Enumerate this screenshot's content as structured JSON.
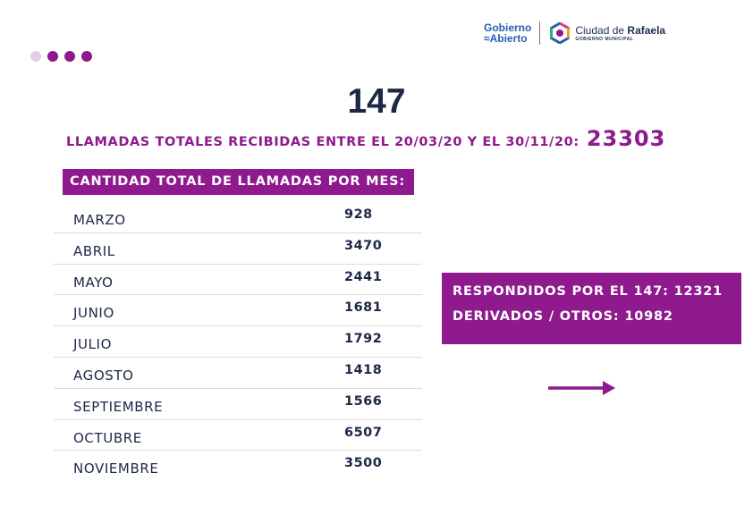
{
  "page_title": "147",
  "total": {
    "label": "LLAMADAS TOTALES RECIBIDAS ENTRE EL 20/03/20 Y EL 30/11/20:",
    "value": "23303"
  },
  "months_header": "CANTIDAD TOTAL DE LLAMADAS POR MES:",
  "months": [
    {
      "name": "MARZO",
      "value": "928"
    },
    {
      "name": "ABRIL",
      "value": "3470"
    },
    {
      "name": "MAYO",
      "value": "2441"
    },
    {
      "name": "JUNIO",
      "value": "1681"
    },
    {
      "name": "JULIO",
      "value": "1792"
    },
    {
      "name": "AGOSTO",
      "value": "1418"
    },
    {
      "name": "SEPTIEMBRE",
      "value": "1566"
    },
    {
      "name": "OCTUBRE",
      "value": "6507"
    },
    {
      "name": "NOVIEMBRE",
      "value": "3500"
    }
  ],
  "summary": {
    "responded_label": "RESPONDIDOS POR EL 147:",
    "responded_value": "12321",
    "derived_label": "DERIVADOS / OTROS:",
    "derived_value": "10982"
  },
  "logos": {
    "gobierno_line1": "Gobierno",
    "gobierno_line2": "Abierto",
    "city_prefix": "Ciudad de",
    "city_name": "Rafaela",
    "city_sub": "GOBIERNO MUNICIPAL"
  },
  "colors": {
    "accent": "#8e1a8e",
    "accent_light": "#e6cde6",
    "text_dark": "#1d2846",
    "logo_blue": "#2a5db0"
  },
  "icons": [
    "dots-icon",
    "ciudad-de-rafaela-logo-icon",
    "arrow-right-icon"
  ]
}
